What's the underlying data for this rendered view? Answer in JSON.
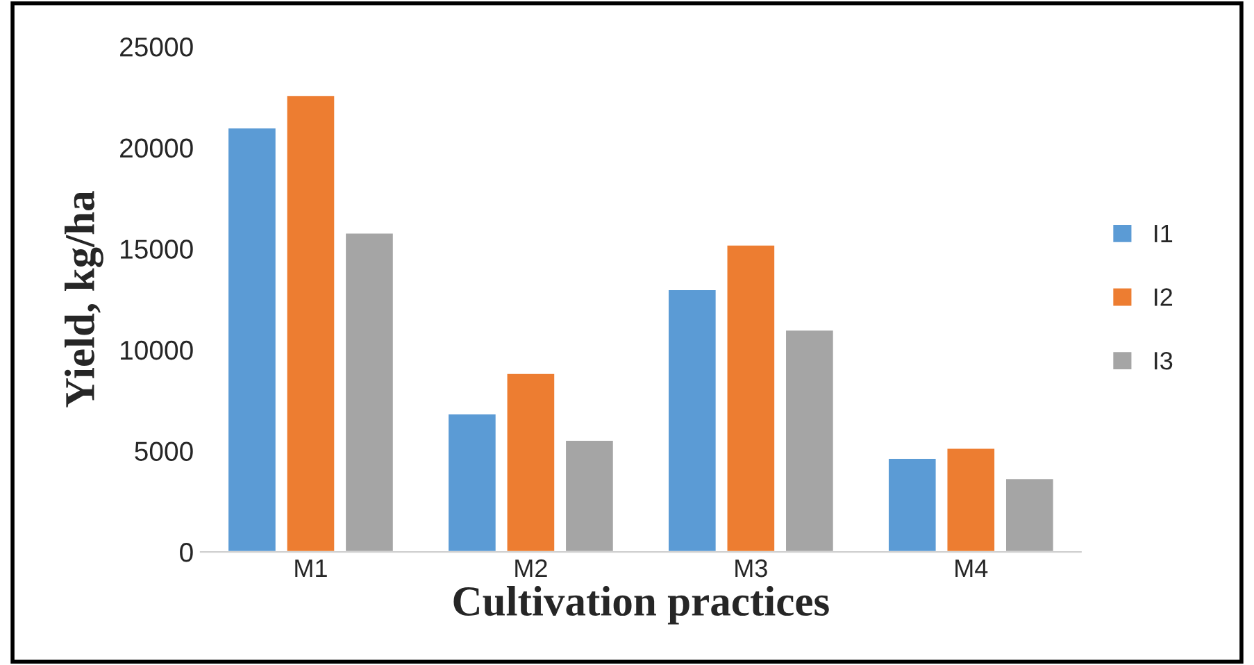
{
  "chart_data": {
    "type": "bar",
    "xlabel": "Cultivation practices",
    "ylabel": "Yield, kg/ha",
    "categories": [
      "M1",
      "M2",
      "M3",
      "M4"
    ],
    "series": [
      {
        "name": "I1",
        "color": "#5b9bd5",
        "values": [
          21000,
          6850,
          13000,
          4650
        ]
      },
      {
        "name": "I2",
        "color": "#ed7d31",
        "values": [
          22600,
          8850,
          15200,
          5150
        ]
      },
      {
        "name": "I3",
        "color": "#a5a5a5",
        "values": [
          15800,
          5550,
          11000,
          3650
        ]
      }
    ],
    "ylim": [
      0,
      25000
    ],
    "yticks": [
      0,
      5000,
      10000,
      15000,
      20000,
      25000
    ],
    "grid": false,
    "legend": "right"
  }
}
